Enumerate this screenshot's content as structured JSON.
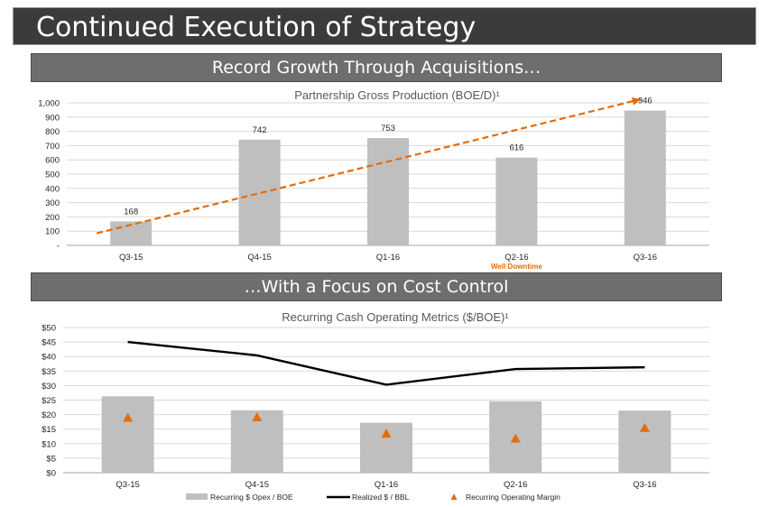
{
  "header": {
    "title": "Continued Execution of Strategy"
  },
  "sections": {
    "top_banner": "Record Growth Through Acquisitions…",
    "bottom_banner": "…With a Focus on Cost Control"
  },
  "chart_data": [
    {
      "type": "bar",
      "title": "Partnership Gross Production (BOE/D)¹",
      "categories": [
        "Q3-15",
        "Q4-15",
        "Q1-16",
        "Q2-16",
        "Q3-16"
      ],
      "values": [
        168,
        742,
        753,
        616,
        946
      ],
      "value_labels": [
        "168",
        "742",
        "753",
        "616",
        "946"
      ],
      "ylim": [
        0,
        1000
      ],
      "yticks": [
        0,
        100,
        200,
        300,
        400,
        500,
        600,
        700,
        800,
        900,
        1000
      ],
      "ytick_labels": [
        "-",
        "100",
        "200",
        "300",
        "400",
        "500",
        "600",
        "700",
        "800",
        "900",
        "1,000"
      ],
      "annotations": [
        {
          "category": "Q2-16",
          "text": "Well Downtime"
        }
      ],
      "trendline": {
        "style": "dashed-arrow",
        "start_value": 85,
        "end_value": 1025
      },
      "grid": true,
      "colors": {
        "bar": "#bfbfbf",
        "trend": "#e46c0a",
        "annotation": "#e46c0a",
        "grid": "#d9d9d9"
      }
    },
    {
      "type": "bar",
      "title": "Recurring Cash Operating Metrics ($/BOE)¹",
      "categories": [
        "Q3-15",
        "Q4-15",
        "Q1-16",
        "Q2-16",
        "Q3-16"
      ],
      "series": [
        {
          "name": "Recurring $ Opex / BOE",
          "type": "bar",
          "values": [
            26.3,
            21.5,
            17.2,
            24.6,
            21.4
          ]
        },
        {
          "name": "Realized $ / BBL",
          "type": "line",
          "values": [
            45.0,
            40.4,
            30.3,
            35.7,
            36.3
          ]
        },
        {
          "name": "Recurring Operating Margin",
          "type": "scatter",
          "marker": "triangle",
          "values": [
            18.8,
            19.0,
            13.3,
            11.6,
            15.3
          ]
        }
      ],
      "ylim": [
        0,
        50
      ],
      "yticks": [
        0,
        5,
        10,
        15,
        20,
        25,
        30,
        35,
        40,
        45,
        50
      ],
      "ytick_labels": [
        "$0",
        "$5",
        "$10",
        "$15",
        "$20",
        "$25",
        "$30",
        "$35",
        "$40",
        "$45",
        "$50"
      ],
      "legend_position": "bottom",
      "grid": true,
      "colors": {
        "bar": "#bfbfbf",
        "line": "#000000",
        "marker": "#e46c0a",
        "grid": "#d9d9d9"
      }
    }
  ]
}
